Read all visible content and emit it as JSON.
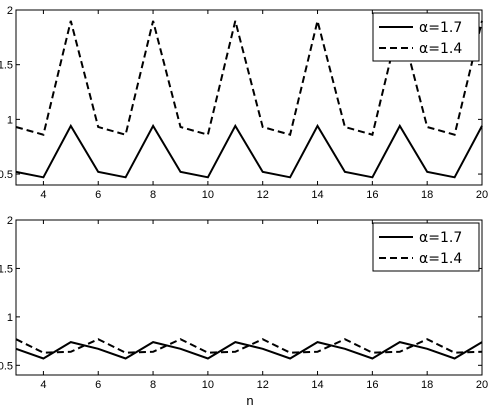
{
  "chart_data": [
    {
      "type": "line",
      "title": "",
      "xlabel": "",
      "ylabel": "",
      "xlim": [
        3,
        20
      ],
      "ylim": [
        0.4,
        2
      ],
      "x": [
        3,
        4,
        5,
        6,
        7,
        8,
        9,
        10,
        11,
        12,
        13,
        14,
        15,
        16,
        17,
        18,
        19,
        20
      ],
      "xticks": [
        4,
        6,
        8,
        10,
        12,
        14,
        16,
        18,
        20
      ],
      "xtick_labels": [
        "4",
        "6",
        "8",
        "10",
        "12",
        "14",
        "16",
        "18",
        "20"
      ],
      "yticks": [
        0.5,
        1,
        1.5,
        2
      ],
      "ytick_labels": [
        "0.5",
        "1",
        "1.5",
        "2"
      ],
      "grid": false,
      "legend_position": "top-right",
      "series": [
        {
          "name": "α=1.7",
          "style": "solid",
          "color": "#000000",
          "values": [
            0.52,
            0.47,
            0.94,
            0.52,
            0.47,
            0.94,
            0.52,
            0.47,
            0.94,
            0.52,
            0.47,
            0.94,
            0.52,
            0.47,
            0.94,
            0.52,
            0.47,
            0.94
          ]
        },
        {
          "name": "α=1.4",
          "style": "dashed",
          "color": "#000000",
          "values": [
            0.93,
            0.86,
            1.9,
            0.93,
            0.86,
            1.9,
            0.93,
            0.86,
            1.9,
            0.93,
            0.86,
            1.9,
            0.93,
            0.86,
            1.9,
            0.93,
            0.86,
            1.9
          ]
        }
      ]
    },
    {
      "type": "line",
      "title": "",
      "xlabel": "n",
      "ylabel": "",
      "xlim": [
        3,
        20
      ],
      "ylim": [
        0.4,
        2
      ],
      "x": [
        3,
        4,
        5,
        6,
        7,
        8,
        9,
        10,
        11,
        12,
        13,
        14,
        15,
        16,
        17,
        18,
        19,
        20
      ],
      "xticks": [
        4,
        6,
        8,
        10,
        12,
        14,
        16,
        18,
        20
      ],
      "xtick_labels": [
        "4",
        "6",
        "8",
        "10",
        "12",
        "14",
        "16",
        "18",
        "20"
      ],
      "yticks": [
        0.5,
        1,
        1.5,
        2
      ],
      "ytick_labels": [
        "0.5",
        "1",
        "1.5",
        "2"
      ],
      "grid": false,
      "legend_position": "top-right",
      "series": [
        {
          "name": "α=1.7",
          "style": "solid",
          "color": "#000000",
          "values": [
            0.67,
            0.57,
            0.74,
            0.67,
            0.57,
            0.74,
            0.67,
            0.57,
            0.74,
            0.67,
            0.57,
            0.74,
            0.67,
            0.57,
            0.74,
            0.67,
            0.57,
            0.74
          ]
        },
        {
          "name": "α=1.4",
          "style": "dashed",
          "color": "#000000",
          "values": [
            0.77,
            0.63,
            0.64,
            0.77,
            0.63,
            0.64,
            0.77,
            0.63,
            0.64,
            0.77,
            0.63,
            0.64,
            0.77,
            0.63,
            0.64,
            0.77,
            0.63,
            0.64
          ]
        }
      ]
    }
  ]
}
